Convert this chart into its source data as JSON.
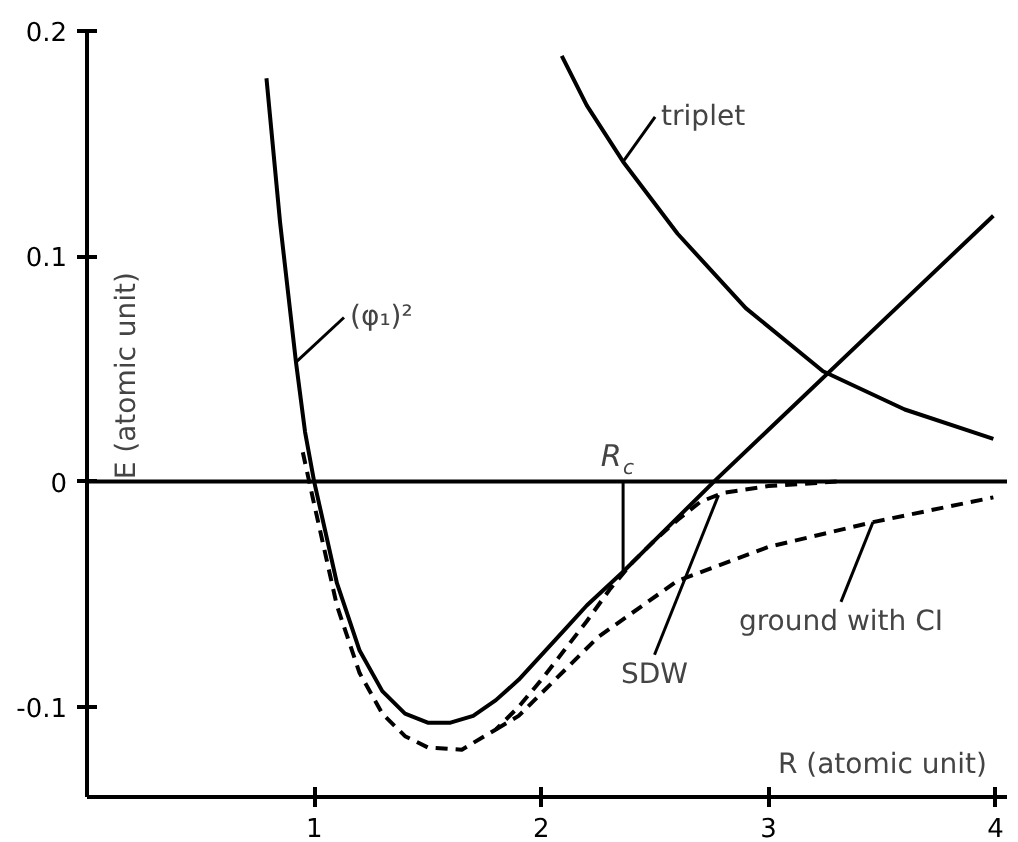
{
  "chart_data": {
    "type": "line",
    "xlabel": "R (atomic unit)",
    "ylabel": "E (atomic unit)",
    "xlim": [
      0,
      4.05
    ],
    "ylim": [
      -0.14,
      0.2
    ],
    "xticks": [
      1,
      2,
      3,
      4
    ],
    "yticks": [
      0.2,
      0.1,
      0,
      -0.1
    ],
    "grid": false,
    "marker": "none",
    "series": [
      {
        "color": "#000000",
        "line_style": "solid",
        "x": [
          0.79,
          0.85,
          0.92,
          0.96,
          1.0,
          1.1,
          1.2,
          1.3,
          1.4,
          1.5,
          1.6,
          1.7,
          1.8,
          1.9,
          2.0,
          2.1,
          2.2,
          2.36,
          2.5,
          2.76,
          3.0,
          3.5,
          3.99
        ],
        "values": [
          0.179,
          0.115,
          0.053,
          0.022,
          0.0,
          -0.045,
          -0.075,
          -0.093,
          -0.103,
          -0.107,
          -0.107,
          -0.104,
          -0.097,
          -0.088,
          -0.077,
          -0.066,
          -0.055,
          -0.04,
          -0.026,
          0.0,
          0.023,
          0.071,
          0.118
        ]
      },
      {
        "color": "#000000",
        "line_style": "solid",
        "x": [
          2.09,
          2.2,
          2.36,
          2.6,
          2.9,
          3.24,
          3.6,
          3.99
        ],
        "values": [
          0.189,
          0.167,
          0.142,
          0.11,
          0.077,
          0.049,
          0.032,
          0.019
        ]
      },
      {
        "color": "#000000",
        "line_style": "dashed",
        "x": [
          0.95,
          1.0,
          1.1,
          1.2,
          1.3,
          1.4,
          1.5,
          1.65,
          1.8,
          1.9,
          2.0,
          2.1,
          2.2,
          2.3,
          2.4,
          2.5,
          2.6,
          2.7,
          2.8,
          3.0,
          3.3
        ],
        "values": [
          0.013,
          -0.01,
          -0.055,
          -0.085,
          -0.103,
          -0.113,
          -0.118,
          -0.119,
          -0.11,
          -0.1,
          -0.088,
          -0.075,
          -0.062,
          -0.048,
          -0.036,
          -0.026,
          -0.017,
          -0.009,
          -0.005,
          -0.002,
          0.0
        ]
      },
      {
        "color": "#000000",
        "line_style": "dashed",
        "x": [
          1.8,
          1.9,
          2.0,
          2.25,
          2.6,
          3.0,
          3.46,
          3.99
        ],
        "values": [
          -0.11,
          -0.104,
          -0.094,
          -0.069,
          -0.044,
          -0.029,
          -0.018,
          -0.007
        ]
      }
    ],
    "ref_lines": [
      {
        "axis": "y",
        "value": 0,
        "color": "#000000",
        "line_style": "solid"
      }
    ],
    "annotations": [
      {
        "text": "(φ₁)²",
        "x": 0.92,
        "y": 0.053
      },
      {
        "text": "triplet",
        "x": 2.36,
        "y": 0.142
      },
      {
        "text": "SDW",
        "x": 2.78,
        "y": -0.006
      },
      {
        "text": "ground with CI",
        "x": 3.46,
        "y": -0.018
      },
      {
        "text": "R$_{c}$",
        "x": 2.36,
        "y": -0.04
      }
    ]
  }
}
